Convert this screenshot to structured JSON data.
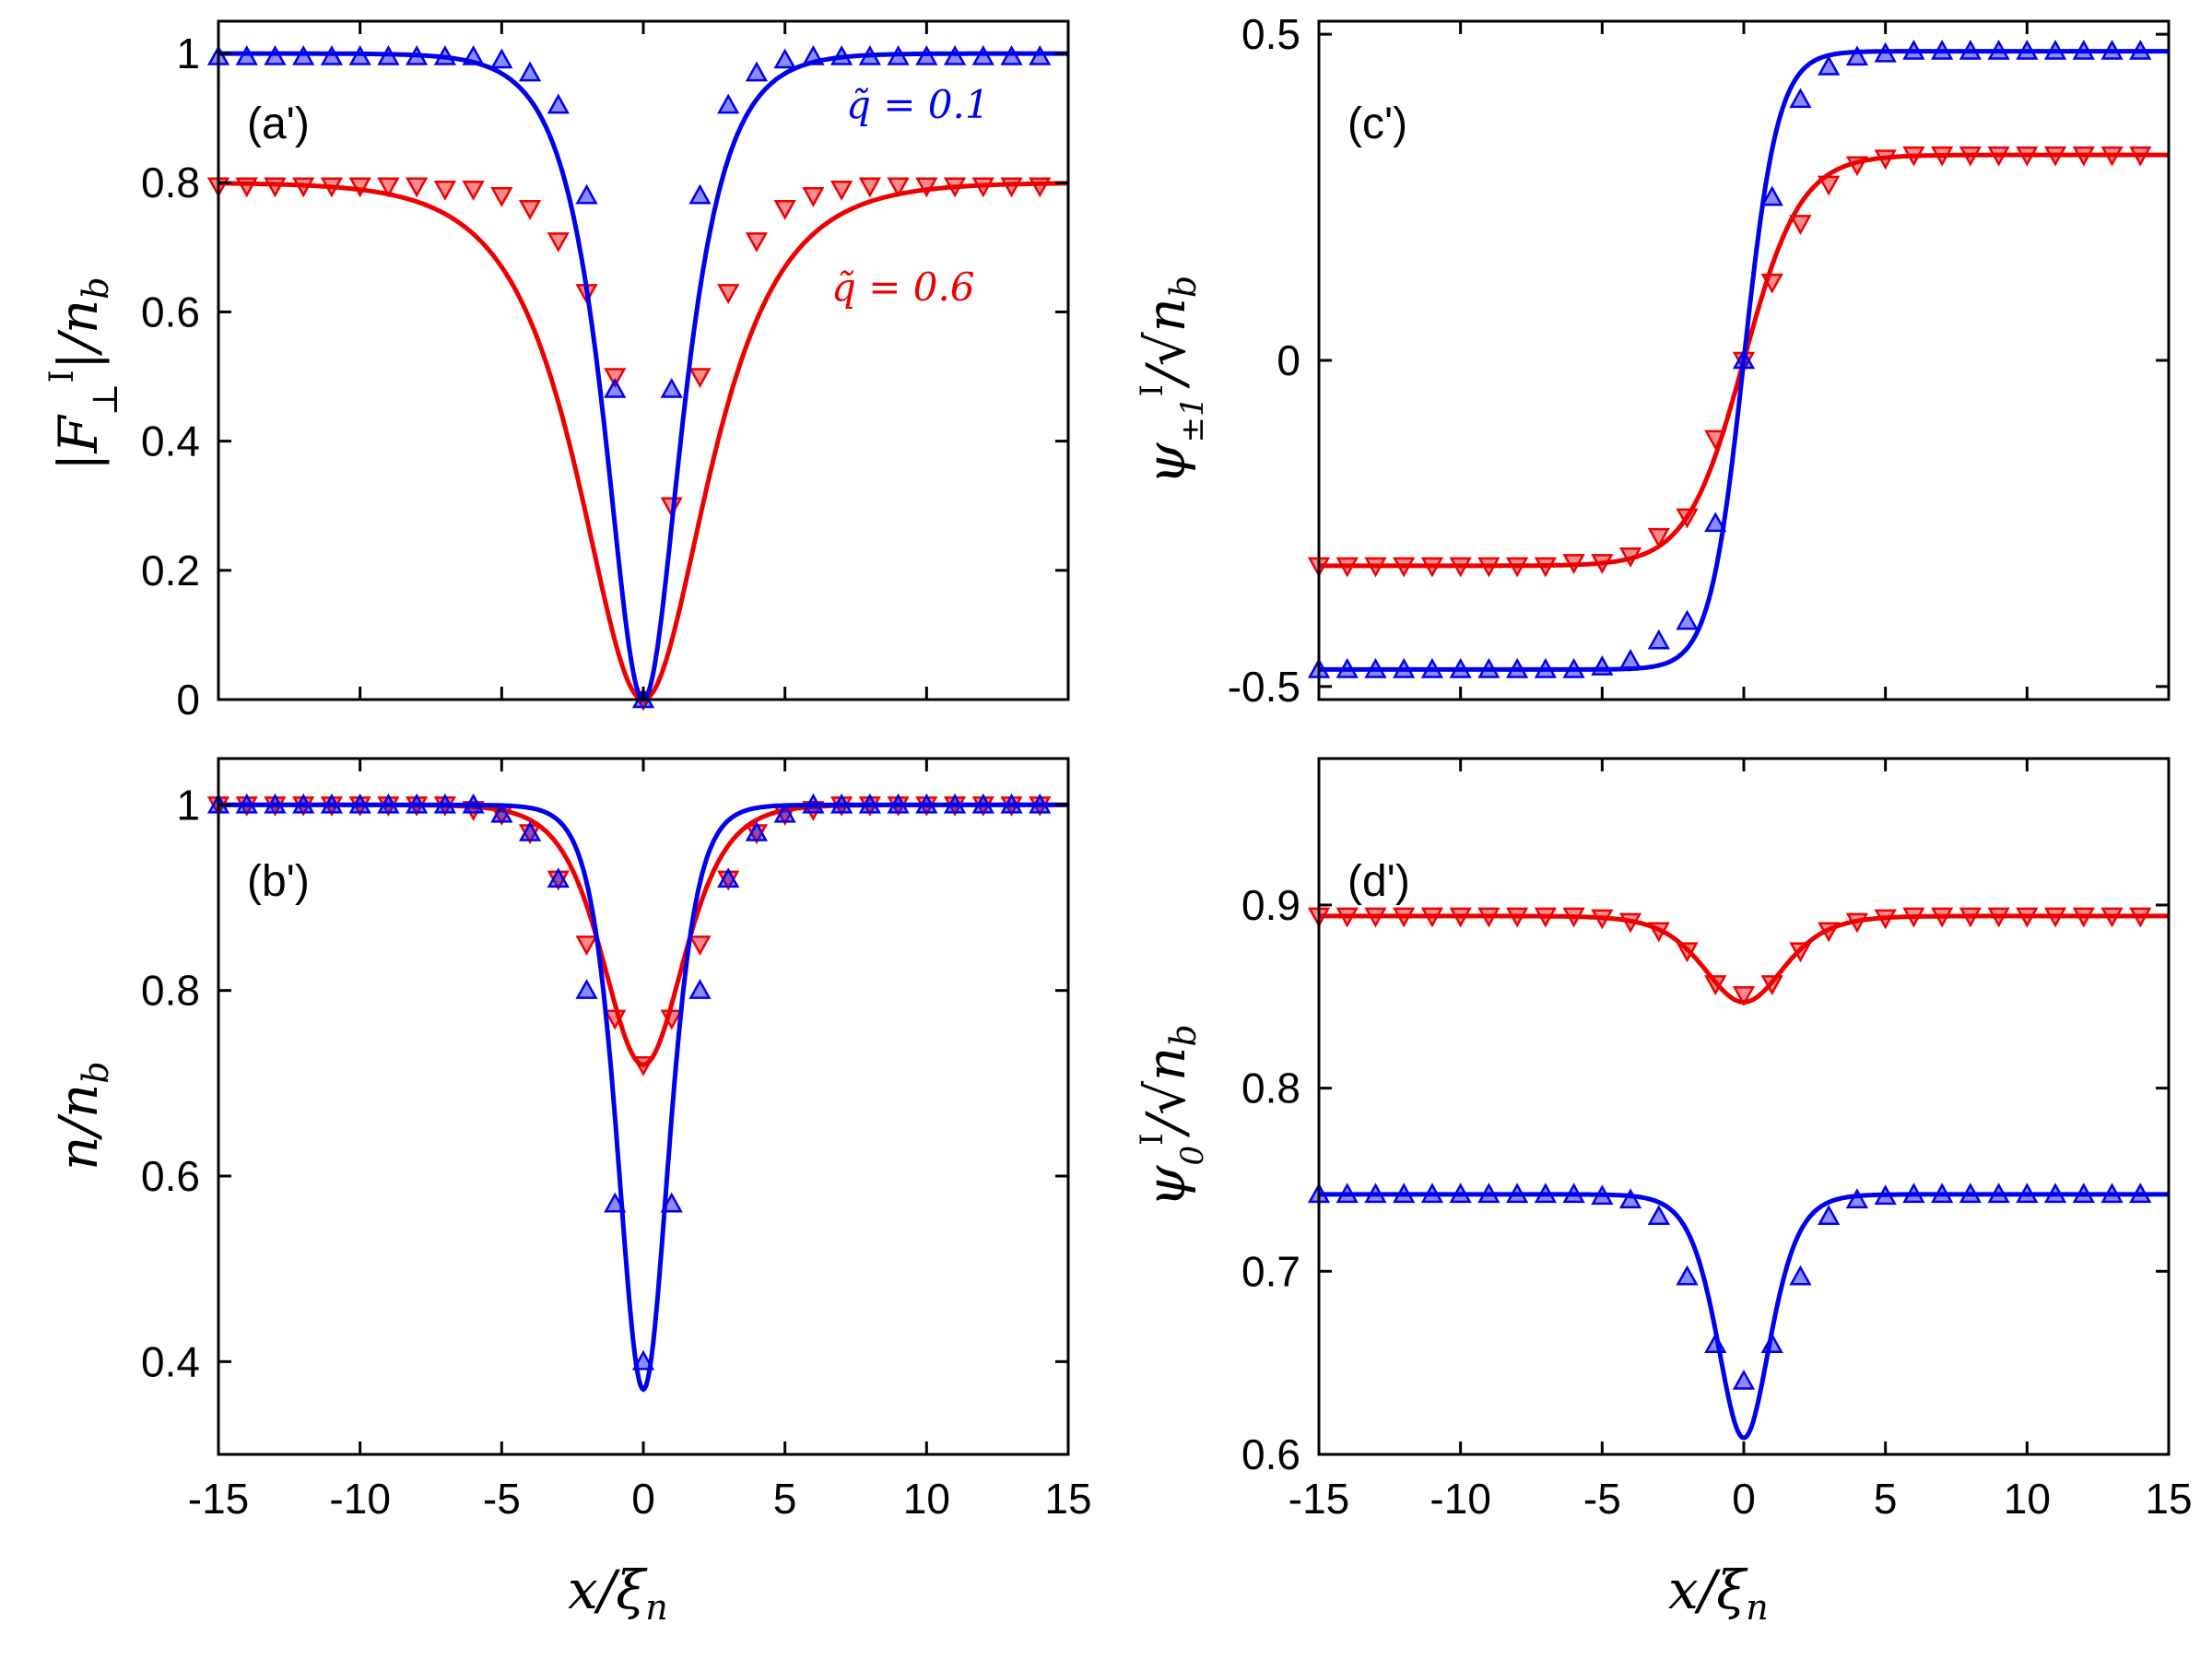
{
  "colors": {
    "series_a": "#0000ee",
    "series_b": "#ee0000",
    "axis": "#000000"
  },
  "chart_data": [
    {
      "panel": "(a')",
      "type": "line",
      "ylabel": "|F⊥ᴵ|/n_b",
      "xlabel": "",
      "xlim": [
        -15,
        15
      ],
      "ylim": [
        0,
        1.05
      ],
      "yticks": [
        0,
        0.2,
        0.4,
        0.6,
        0.8,
        1
      ],
      "ytick_labels": [
        "0",
        "0.2",
        "0.4",
        "0.6",
        "0.8",
        "1"
      ],
      "xticks": [
        -15,
        -10,
        -5,
        0,
        5,
        10,
        15
      ],
      "xtick_labels": [],
      "legend": [
        {
          "name": "q̃ = 0.1",
          "color": "#0000ee",
          "position": "top-right"
        },
        {
          "name": "q̃ = 0.6",
          "color": "#ee0000",
          "position": "middle-right"
        }
      ],
      "series": [
        {
          "name": "q̃ = 0.1",
          "color": "#0000ee",
          "marker": "triangle-up",
          "model": "dip",
          "params": {
            "base": 1.0,
            "depth": 1.0,
            "width": 1.2,
            "power": 1
          },
          "marker_x": [
            -15,
            -14,
            -13,
            -12,
            -11,
            -10,
            -9,
            -8,
            -7,
            -6,
            -5,
            -4,
            -3,
            -2,
            -1,
            0,
            1,
            2,
            3,
            4,
            5,
            6,
            7,
            8,
            9,
            10,
            11,
            12,
            13,
            14
          ],
          "marker_y": [
            0.995,
            0.995,
            0.995,
            0.995,
            0.995,
            0.995,
            0.995,
            0.995,
            0.995,
            0.995,
            0.99,
            0.97,
            0.92,
            0.78,
            0.48,
            0.0,
            0.48,
            0.78,
            0.92,
            0.97,
            0.99,
            0.995,
            0.995,
            0.995,
            0.995,
            0.995,
            0.995,
            0.995,
            0.995,
            0.995
          ]
        },
        {
          "name": "q̃ = 0.6",
          "color": "#ee0000",
          "marker": "triangle-down",
          "model": "dip",
          "params": {
            "base": 0.8,
            "depth": 0.8,
            "width": 2.0,
            "power": 1
          },
          "marker_x": [
            -15,
            -14,
            -13,
            -12,
            -11,
            -10,
            -9,
            -8,
            -7,
            -6,
            -5,
            -4,
            -3,
            -2,
            -1,
            0,
            1,
            2,
            3,
            4,
            5,
            6,
            7,
            8,
            9,
            10,
            11,
            12,
            13,
            14
          ],
          "marker_y": [
            0.795,
            0.795,
            0.795,
            0.795,
            0.795,
            0.795,
            0.795,
            0.795,
            0.79,
            0.79,
            0.78,
            0.76,
            0.71,
            0.63,
            0.5,
            0.0,
            0.3,
            0.5,
            0.63,
            0.71,
            0.76,
            0.78,
            0.79,
            0.795,
            0.795,
            0.795,
            0.795,
            0.795,
            0.795,
            0.795
          ]
        }
      ]
    },
    {
      "panel": "(b')",
      "type": "line",
      "ylabel": "n/n_b",
      "xlabel": "x/ξ_n",
      "xlim": [
        -15,
        15
      ],
      "ylim": [
        0.3,
        1.05
      ],
      "yticks": [
        0.4,
        0.6,
        0.8,
        1
      ],
      "ytick_labels": [
        "0.4",
        "0.6",
        "0.8",
        "1"
      ],
      "xticks": [
        -15,
        -10,
        -5,
        0,
        5,
        10,
        15
      ],
      "xtick_labels": [
        "-15",
        "-10",
        "-5",
        "0",
        "5",
        "10",
        "15"
      ],
      "series": [
        {
          "name": "q̃ = 0.1",
          "color": "#0000ee",
          "marker": "triangle-up",
          "model": "dip",
          "params": {
            "base": 1.0,
            "depth": 0.63,
            "width": 1.2,
            "power": 2
          },
          "marker_x": [
            -15,
            -14,
            -13,
            -12,
            -11,
            -10,
            -9,
            -8,
            -7,
            -6,
            -5,
            -4,
            -3,
            -2,
            -1,
            0,
            1,
            2,
            3,
            4,
            5,
            6,
            7,
            8,
            9,
            10,
            11,
            12,
            13,
            14
          ],
          "marker_y": [
            1.0,
            1.0,
            1.0,
            1.0,
            1.0,
            1.0,
            1.0,
            1.0,
            1.0,
            1.0,
            0.99,
            0.97,
            0.92,
            0.8,
            0.57,
            0.4,
            0.57,
            0.8,
            0.92,
            0.97,
            0.99,
            1.0,
            1.0,
            1.0,
            1.0,
            1.0,
            1.0,
            1.0,
            1.0,
            1.0
          ]
        },
        {
          "name": "q̃ = 0.6",
          "color": "#ee0000",
          "marker": "triangle-down",
          "model": "dip",
          "params": {
            "base": 1.0,
            "depth": 0.28,
            "width": 1.9,
            "power": 2
          },
          "marker_x": [
            -15,
            -14,
            -13,
            -12,
            -11,
            -10,
            -9,
            -8,
            -7,
            -6,
            -5,
            -4,
            -3,
            -2,
            -1,
            0,
            1,
            2,
            3,
            4,
            5,
            6,
            7,
            8,
            9,
            10,
            11,
            12,
            13,
            14
          ],
          "marker_y": [
            1.0,
            1.0,
            1.0,
            1.0,
            1.0,
            1.0,
            1.0,
            1.0,
            1.0,
            0.995,
            0.99,
            0.97,
            0.92,
            0.85,
            0.77,
            0.72,
            0.77,
            0.85,
            0.92,
            0.97,
            0.99,
            0.995,
            1.0,
            1.0,
            1.0,
            1.0,
            1.0,
            1.0,
            1.0,
            1.0
          ]
        }
      ]
    },
    {
      "panel": "(c')",
      "type": "line",
      "ylabel": "ψ±1ᴵ/√n_b",
      "xlabel": "",
      "xlim": [
        -15,
        15
      ],
      "ylim": [
        -0.52,
        0.52
      ],
      "yticks": [
        -0.5,
        0,
        0.5
      ],
      "ytick_labels": [
        "-0.5",
        "0",
        "0.5"
      ],
      "xticks": [
        -15,
        -10,
        -5,
        0,
        5,
        10,
        15
      ],
      "xtick_labels": [],
      "series": [
        {
          "name": "q̃ = 0.1",
          "color": "#0000ee",
          "marker": "triangle-up",
          "model": "kink",
          "params": {
            "amp": 0.474,
            "width": 1.2
          },
          "marker_x": [
            -15,
            -14,
            -13,
            -12,
            -11,
            -10,
            -9,
            -8,
            -7,
            -6,
            -5,
            -4,
            -3,
            -2,
            -1,
            0,
            1,
            2,
            3,
            4,
            5,
            6,
            7,
            8,
            9,
            10,
            11,
            12,
            13,
            14
          ],
          "marker_y": [
            -0.474,
            -0.474,
            -0.474,
            -0.474,
            -0.474,
            -0.474,
            -0.474,
            -0.474,
            -0.474,
            -0.474,
            -0.47,
            -0.46,
            -0.43,
            -0.4,
            -0.25,
            0.0,
            0.25,
            0.4,
            0.45,
            0.465,
            0.47,
            0.474,
            0.474,
            0.474,
            0.474,
            0.474,
            0.474,
            0.474,
            0.474,
            0.474
          ]
        },
        {
          "name": "q̃ = 0.6",
          "color": "#ee0000",
          "marker": "triangle-down",
          "model": "kink",
          "params": {
            "amp": 0.315,
            "width": 2.0
          },
          "marker_x": [
            -15,
            -14,
            -13,
            -12,
            -11,
            -10,
            -9,
            -8,
            -7,
            -6,
            -5,
            -4,
            -3,
            -2,
            -1,
            0,
            1,
            2,
            3,
            4,
            5,
            6,
            7,
            8,
            9,
            10,
            11,
            12,
            13,
            14
          ],
          "marker_y": [
            -0.315,
            -0.315,
            -0.315,
            -0.315,
            -0.315,
            -0.315,
            -0.315,
            -0.315,
            -0.315,
            -0.31,
            -0.31,
            -0.3,
            -0.27,
            -0.24,
            -0.12,
            0.0,
            0.12,
            0.21,
            0.27,
            0.3,
            0.31,
            0.315,
            0.315,
            0.315,
            0.315,
            0.315,
            0.315,
            0.315,
            0.315,
            0.315
          ]
        }
      ]
    },
    {
      "panel": "(d')",
      "type": "line",
      "ylabel": "ψ0ᴵ/√n_b",
      "xlabel": "x/ξ_n",
      "xlim": [
        -15,
        15
      ],
      "ylim": [
        0.6,
        0.98
      ],
      "yticks": [
        0.6,
        0.7,
        0.8,
        0.9
      ],
      "ytick_labels": [
        "0.6",
        "0.7",
        "0.8",
        "0.9"
      ],
      "xticks": [
        -15,
        -10,
        -5,
        0,
        5,
        10,
        15
      ],
      "xtick_labels": [
        "-15",
        "-10",
        "-5",
        "0",
        "5",
        "10",
        "15"
      ],
      "series": [
        {
          "name": "q̃ = 0.1",
          "color": "#0000ee",
          "marker": "triangle-up",
          "model": "dip",
          "params": {
            "base": 0.742,
            "depth": 0.133,
            "width": 1.25,
            "power": 2
          },
          "marker_x": [
            -15,
            -14,
            -13,
            -12,
            -11,
            -10,
            -9,
            -8,
            -7,
            -6,
            -5,
            -4,
            -3,
            -2,
            -1,
            0,
            1,
            2,
            3,
            4,
            5,
            6,
            7,
            8,
            9,
            10,
            11,
            12,
            13,
            14
          ],
          "marker_y": [
            0.742,
            0.742,
            0.742,
            0.742,
            0.742,
            0.742,
            0.742,
            0.742,
            0.742,
            0.742,
            0.741,
            0.739,
            0.73,
            0.697,
            0.66,
            0.64,
            0.66,
            0.697,
            0.73,
            0.739,
            0.741,
            0.742,
            0.742,
            0.742,
            0.742,
            0.742,
            0.742,
            0.742,
            0.742,
            0.742
          ]
        },
        {
          "name": "q̃ = 0.6",
          "color": "#ee0000",
          "marker": "triangle-down",
          "model": "dip",
          "params": {
            "base": 0.894,
            "depth": 0.047,
            "width": 1.9,
            "power": 2
          },
          "marker_x": [
            -15,
            -14,
            -13,
            -12,
            -11,
            -10,
            -9,
            -8,
            -7,
            -6,
            -5,
            -4,
            -3,
            -2,
            -1,
            0,
            1,
            2,
            3,
            4,
            5,
            6,
            7,
            8,
            9,
            10,
            11,
            12,
            13,
            14
          ],
          "marker_y": [
            0.894,
            0.894,
            0.894,
            0.894,
            0.894,
            0.894,
            0.894,
            0.894,
            0.894,
            0.894,
            0.893,
            0.891,
            0.886,
            0.875,
            0.857,
            0.851,
            0.857,
            0.875,
            0.886,
            0.891,
            0.893,
            0.894,
            0.894,
            0.894,
            0.894,
            0.894,
            0.894,
            0.894,
            0.894,
            0.894
          ]
        }
      ]
    }
  ]
}
